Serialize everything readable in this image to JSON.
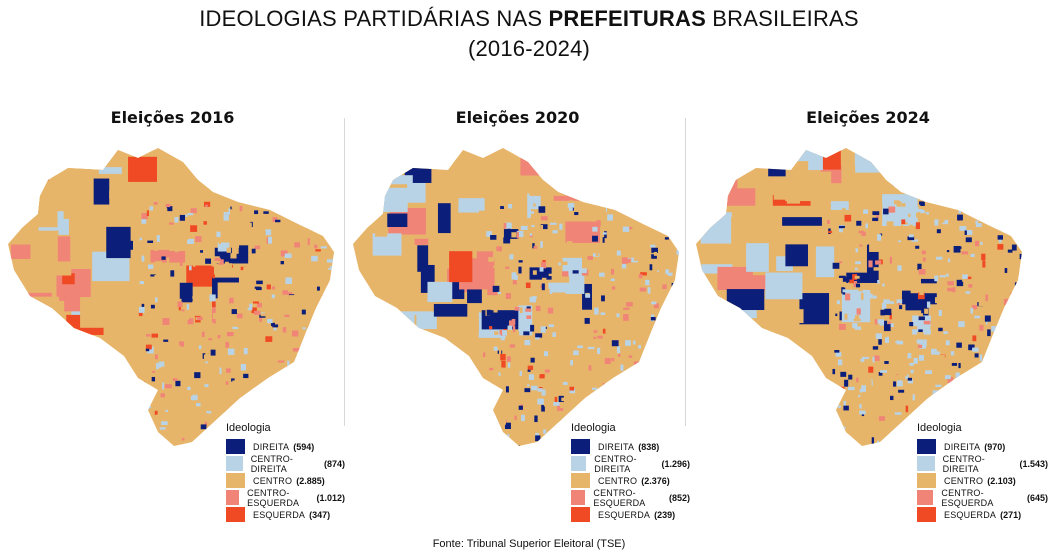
{
  "title": {
    "prefix": "IDEOLOGIAS PARTIDÁRIAS NAS ",
    "highlight": "PREFEITURAS",
    "suffix": " BRASILEIRAS",
    "period": "(2016-2024)"
  },
  "colors": {
    "direita": "#0b1e7a",
    "centro_direita": "#b9d3e6",
    "centro": "#e7b56a",
    "centro_esquerda": "#ef8477",
    "esquerda": "#f04a24"
  },
  "legend_title": "Ideologia",
  "panels": [
    {
      "title": "Eleições 2016",
      "legend": [
        {
          "label": "DIREITA",
          "count": "(594)"
        },
        {
          "label": "CENTRO-DIREITA",
          "count": "(874)"
        },
        {
          "label": "CENTRO",
          "count": "(2.885)"
        },
        {
          "label": "CENTRO-ESQUERDA",
          "count": "(1.012)"
        },
        {
          "label": "ESQUERDA",
          "count": "(347)"
        }
      ]
    },
    {
      "title": "Eleições 2020",
      "legend": [
        {
          "label": "DIREITA",
          "count": "(838)"
        },
        {
          "label": "CENTRO-DIREITA",
          "count": "(1.296)"
        },
        {
          "label": "CENTRO",
          "count": "(2.376)"
        },
        {
          "label": "CENTRO-ESQUERDA",
          "count": "(852)"
        },
        {
          "label": "ESQUERDA",
          "count": "(239)"
        }
      ]
    },
    {
      "title": "Eleições 2024",
      "legend": [
        {
          "label": "DIREITA",
          "count": "(970)"
        },
        {
          "label": "CENTRO-DIREITA",
          "count": "(1.543)"
        },
        {
          "label": "CENTRO",
          "count": "(2.103)"
        },
        {
          "label": "CENTRO-ESQUERDA",
          "count": "(645)"
        },
        {
          "label": "ESQUERDA",
          "count": "(271)"
        }
      ]
    }
  ],
  "source": "Fonte: Tribunal Superior Eleitoral (TSE)"
}
